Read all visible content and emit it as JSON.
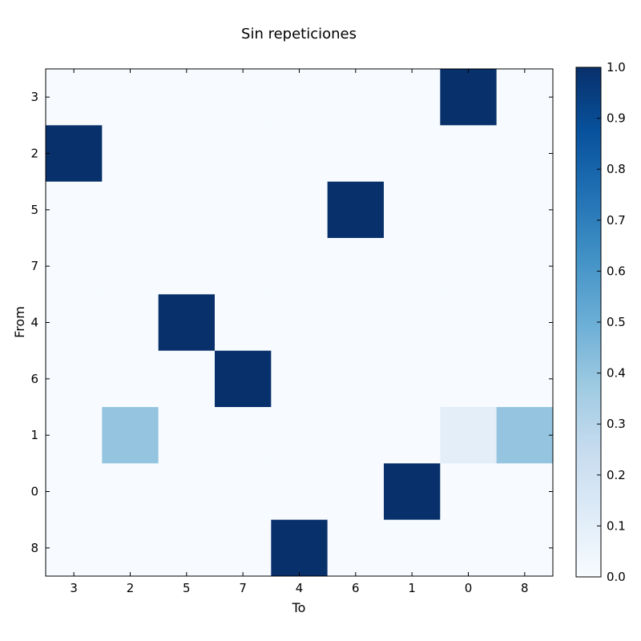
{
  "chart_data": {
    "type": "heatmap",
    "title": "Sin repeticiones",
    "xlabel": "To",
    "ylabel": "From",
    "x_categories": [
      "3",
      "2",
      "5",
      "7",
      "4",
      "6",
      "1",
      "0",
      "8"
    ],
    "y_categories": [
      "3",
      "2",
      "5",
      "7",
      "4",
      "6",
      "1",
      "0",
      "8"
    ],
    "values": [
      [
        0,
        0,
        0,
        0,
        0,
        0,
        0,
        1,
        0
      ],
      [
        1,
        0,
        0,
        0,
        0,
        0,
        0,
        0,
        0
      ],
      [
        0,
        0,
        0,
        0,
        0,
        1,
        0,
        0,
        0
      ],
      [
        0,
        0,
        0,
        0,
        0,
        0,
        0,
        0,
        0
      ],
      [
        0,
        0,
        1,
        0,
        0,
        0,
        0,
        0,
        0
      ],
      [
        0,
        0,
        0,
        1,
        0,
        0,
        0,
        0,
        0
      ],
      [
        0,
        0.4,
        0,
        0,
        0,
        0,
        0,
        0.1,
        0.4
      ],
      [
        0,
        0,
        0,
        0,
        0,
        0,
        1,
        0,
        0
      ],
      [
        0,
        0,
        0,
        0,
        1,
        0,
        0,
        0,
        0
      ]
    ],
    "colormap": "Blues",
    "vmin": 0.0,
    "vmax": 1.0,
    "colorbar_ticks": [
      "0.0",
      "0.1",
      "0.2",
      "0.3",
      "0.4",
      "0.5",
      "0.6",
      "0.7",
      "0.8",
      "0.9",
      "1.0"
    ],
    "grid": false,
    "colorbar": "right"
  }
}
